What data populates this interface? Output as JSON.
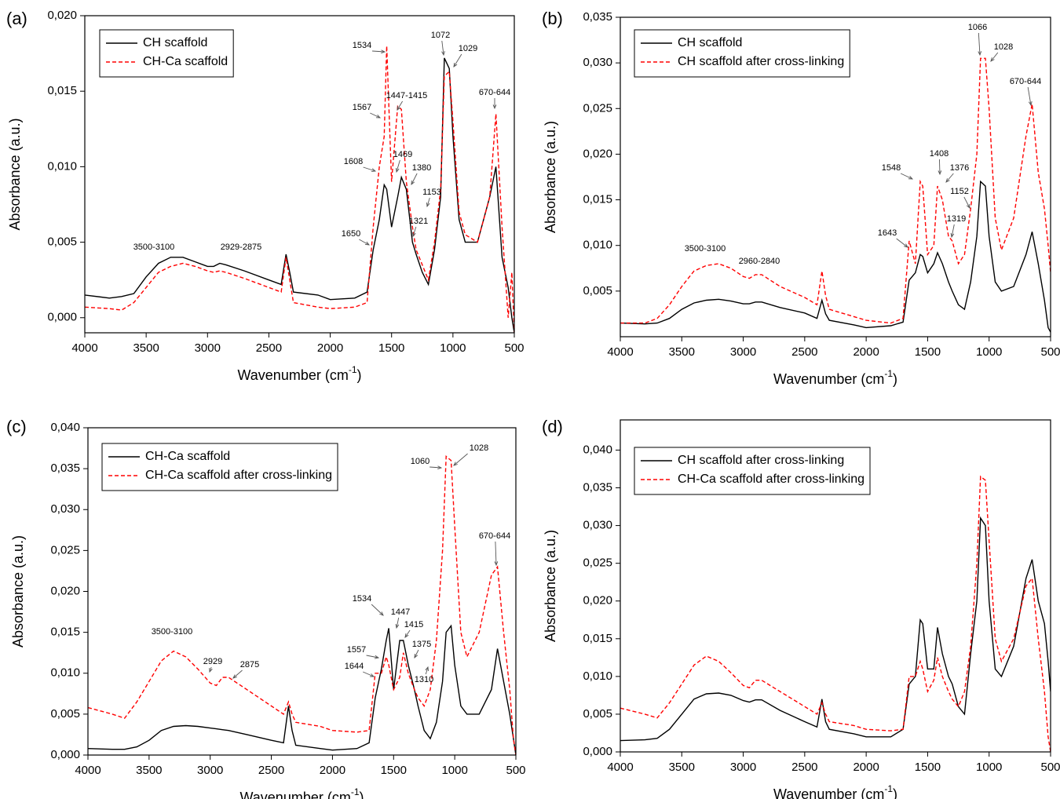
{
  "chart_data": [
    {
      "type": "line",
      "panel_label": "(a)",
      "ylabel": "Absorbance (a.u.)",
      "xlabel": {
        "text": "Wavenumber (cm",
        "superscript": "-1",
        "suffix": ")"
      },
      "legend": "upper left",
      "xlim": [
        4000,
        500
      ],
      "xticks": [
        4000,
        3500,
        3000,
        2500,
        2000,
        1500,
        1000,
        500
      ],
      "ylim": [
        -0.001,
        0.02
      ],
      "yticks": [
        {
          "value": 0,
          "label": "0,000"
        },
        {
          "value": 0.005,
          "label": "0,005"
        },
        {
          "value": 0.01,
          "label": "0,010"
        },
        {
          "value": 0.015,
          "label": "0,015"
        },
        {
          "value": 0.02,
          "label": "0,020"
        }
      ],
      "x": [
        4000,
        3800,
        3700,
        3600,
        3500,
        3400,
        3300,
        3200,
        3100,
        3000,
        2950,
        2900,
        2850,
        2700,
        2500,
        2400,
        2360,
        2330,
        2300,
        2100,
        2000,
        1800,
        1700,
        1650,
        1600,
        1560,
        1540,
        1500,
        1450,
        1420,
        1380,
        1330,
        1300,
        1250,
        1200,
        1150,
        1100,
        1070,
        1030,
        1000,
        950,
        900,
        800,
        700,
        650,
        600,
        550,
        520,
        500
      ],
      "series": [
        {
          "name": "CH scaffold",
          "color": "#000000",
          "style": "solid",
          "values": [
            0.0015,
            0.0013,
            0.0014,
            0.0016,
            0.0027,
            0.0036,
            0.004,
            0.004,
            0.0037,
            0.0034,
            0.0034,
            0.0036,
            0.0035,
            0.0031,
            0.0025,
            0.0022,
            0.0042,
            0.003,
            0.0017,
            0.0015,
            0.0012,
            0.0013,
            0.0017,
            0.0045,
            0.0065,
            0.0088,
            0.0085,
            0.006,
            0.008,
            0.0093,
            0.0085,
            0.005,
            0.0042,
            0.003,
            0.0022,
            0.0045,
            0.008,
            0.0172,
            0.0165,
            0.012,
            0.0065,
            0.005,
            0.005,
            0.008,
            0.01,
            0.004,
            0.002,
            0.0,
            -0.001
          ]
        },
        {
          "name": "CH-Ca scaffold",
          "color": "#ff0000",
          "style": "dashed",
          "values": [
            0.0007,
            0.0006,
            0.0005,
            0.001,
            0.002,
            0.003,
            0.0034,
            0.0036,
            0.0034,
            0.0031,
            0.003,
            0.0031,
            0.003,
            0.0026,
            0.002,
            0.0017,
            0.004,
            0.0025,
            0.001,
            0.0007,
            0.0006,
            0.0007,
            0.001,
            0.006,
            0.01,
            0.012,
            0.018,
            0.009,
            0.014,
            0.0138,
            0.009,
            0.006,
            0.0045,
            0.0035,
            0.0025,
            0.005,
            0.0085,
            0.016,
            0.0163,
            0.013,
            0.007,
            0.0055,
            0.005,
            0.008,
            0.0135,
            0.006,
            0.0,
            0.003,
            -0.001
          ]
        }
      ],
      "annotations": [
        "3500-3100",
        "2929-2875",
        "1650",
        "1608",
        "1567",
        "1534",
        "1447-1415",
        "1469",
        "1380",
        "1153",
        "1321",
        "1072",
        "1029",
        "670-644"
      ]
    },
    {
      "type": "line",
      "panel_label": "(b)",
      "ylabel": "Absorbance (a.u.)",
      "xlabel": {
        "text": "Wavenumber (cm",
        "superscript": "-1",
        "suffix": ")"
      },
      "legend": "upper left",
      "xlim": [
        4000,
        500
      ],
      "xticks": [
        4000,
        3500,
        3000,
        2500,
        2000,
        1500,
        1000,
        500
      ],
      "ylim": [
        0,
        0.035
      ],
      "yticks": [
        {
          "value": 0.005,
          "label": "0,005"
        },
        {
          "value": 0.01,
          "label": "0,010"
        },
        {
          "value": 0.015,
          "label": "0,015"
        },
        {
          "value": 0.02,
          "label": "0,020"
        },
        {
          "value": 0.025,
          "label": "0,025"
        },
        {
          "value": 0.03,
          "label": "0,030"
        },
        {
          "value": 0.035,
          "label": "0,035"
        }
      ],
      "x": [
        4000,
        3800,
        3700,
        3600,
        3500,
        3400,
        3300,
        3200,
        3100,
        3000,
        2950,
        2900,
        2850,
        2700,
        2500,
        2400,
        2360,
        2330,
        2300,
        2100,
        2000,
        1800,
        1700,
        1650,
        1600,
        1560,
        1540,
        1500,
        1450,
        1420,
        1380,
        1330,
        1300,
        1250,
        1200,
        1150,
        1100,
        1070,
        1030,
        1000,
        950,
        900,
        800,
        700,
        650,
        600,
        550,
        520,
        500
      ],
      "series": [
        {
          "name": "CH scaffold",
          "color": "#000000",
          "style": "solid",
          "values": [
            0.0015,
            0.0014,
            0.0015,
            0.002,
            0.003,
            0.0037,
            0.004,
            0.0041,
            0.0039,
            0.0036,
            0.0036,
            0.0038,
            0.0038,
            0.0032,
            0.0026,
            0.002,
            0.004,
            0.0025,
            0.0018,
            0.0013,
            0.001,
            0.0012,
            0.0016,
            0.0062,
            0.007,
            0.009,
            0.0088,
            0.007,
            0.008,
            0.0092,
            0.008,
            0.006,
            0.005,
            0.0035,
            0.003,
            0.006,
            0.011,
            0.017,
            0.0165,
            0.011,
            0.006,
            0.005,
            0.0055,
            0.009,
            0.0115,
            0.008,
            0.004,
            0.001,
            0.0005
          ]
        },
        {
          "name": "CH scaffold after cross-linking",
          "color": "#ff0000",
          "style": "dashed",
          "values": [
            0.0015,
            0.0015,
            0.002,
            0.0035,
            0.0055,
            0.0072,
            0.0078,
            0.008,
            0.0075,
            0.0066,
            0.0064,
            0.0068,
            0.0068,
            0.0055,
            0.0043,
            0.0035,
            0.0072,
            0.0045,
            0.003,
            0.0022,
            0.0018,
            0.0015,
            0.002,
            0.0105,
            0.008,
            0.017,
            0.0165,
            0.009,
            0.01,
            0.0165,
            0.015,
            0.011,
            0.0105,
            0.008,
            0.009,
            0.014,
            0.02,
            0.0305,
            0.0305,
            0.025,
            0.013,
            0.0095,
            0.013,
            0.022,
            0.0255,
            0.018,
            0.014,
            0.01,
            0.007
          ]
        }
      ],
      "annotations": [
        "3500-3100",
        "2960-2840",
        "1643",
        "1548",
        "1408",
        "1376",
        "1152",
        "1319",
        "1066",
        "1028",
        "670-644"
      ]
    },
    {
      "type": "line",
      "panel_label": "(c)",
      "ylabel": "Absorbance (a.u.)",
      "xlabel": {
        "text": "Wavenumber (cm",
        "superscript": "-1",
        "suffix": ")"
      },
      "legend": "upper left",
      "xlim": [
        4000,
        500
      ],
      "xticks": [
        4000,
        3500,
        3000,
        2500,
        2000,
        1500,
        1000,
        500
      ],
      "ylim": [
        0,
        0.04
      ],
      "yticks": [
        {
          "value": 0,
          "label": "0,000"
        },
        {
          "value": 0.005,
          "label": "0,005"
        },
        {
          "value": 0.01,
          "label": "0,010"
        },
        {
          "value": 0.015,
          "label": "0,015"
        },
        {
          "value": 0.02,
          "label": "0,020"
        },
        {
          "value": 0.025,
          "label": "0,025"
        },
        {
          "value": 0.03,
          "label": "0,030"
        },
        {
          "value": 0.035,
          "label": "0,035"
        },
        {
          "value": 0.04,
          "label": "0,040"
        }
      ],
      "x": [
        4000,
        3800,
        3700,
        3600,
        3500,
        3400,
        3300,
        3200,
        3100,
        3000,
        2950,
        2900,
        2850,
        2700,
        2500,
        2400,
        2360,
        2330,
        2300,
        2100,
        2000,
        1800,
        1700,
        1650,
        1600,
        1560,
        1540,
        1500,
        1450,
        1420,
        1380,
        1330,
        1300,
        1250,
        1200,
        1150,
        1100,
        1070,
        1030,
        1000,
        950,
        900,
        800,
        700,
        650,
        600,
        550,
        520,
        500
      ],
      "series": [
        {
          "name": "CH-Ca scaffold",
          "color": "#000000",
          "style": "solid",
          "values": [
            0.0008,
            0.0007,
            0.0007,
            0.001,
            0.0018,
            0.003,
            0.0035,
            0.0036,
            0.0035,
            0.0033,
            0.0032,
            0.0031,
            0.003,
            0.0025,
            0.0018,
            0.0015,
            0.006,
            0.003,
            0.0012,
            0.0008,
            0.0006,
            0.0008,
            0.0015,
            0.007,
            0.0105,
            0.014,
            0.0155,
            0.008,
            0.014,
            0.014,
            0.011,
            0.008,
            0.006,
            0.003,
            0.002,
            0.004,
            0.009,
            0.015,
            0.0158,
            0.011,
            0.006,
            0.005,
            0.005,
            0.008,
            0.013,
            0.009,
            0.005,
            0.002,
            0.0
          ]
        },
        {
          "name": "CH-Ca scaffold after cross-linking",
          "color": "#ff0000",
          "style": "dashed",
          "values": [
            0.0058,
            0.005,
            0.0045,
            0.0065,
            0.009,
            0.0115,
            0.0127,
            0.012,
            0.0105,
            0.0088,
            0.0085,
            0.0095,
            0.0095,
            0.008,
            0.006,
            0.005,
            0.0065,
            0.005,
            0.004,
            0.0035,
            0.003,
            0.0028,
            0.003,
            0.01,
            0.01,
            0.012,
            0.011,
            0.008,
            0.0095,
            0.0125,
            0.01,
            0.008,
            0.007,
            0.006,
            0.008,
            0.014,
            0.025,
            0.0365,
            0.036,
            0.028,
            0.015,
            0.012,
            0.015,
            0.022,
            0.023,
            0.015,
            0.008,
            0.002,
            0.0
          ]
        }
      ],
      "annotations": [
        "3500-3100",
        "2929",
        "2875",
        "1557",
        "1644",
        "1534",
        "1447",
        "1415",
        "1375",
        "1310",
        "1060",
        "1028",
        "670-644"
      ]
    },
    {
      "type": "line",
      "panel_label": "(d)",
      "ylabel": "Absorbance (a.u.)",
      "xlabel": {
        "text": "Wavenumber (cm",
        "superscript": "-1",
        "suffix": ")"
      },
      "legend": "upper left",
      "xlim": [
        4000,
        500
      ],
      "xticks": [
        4000,
        3500,
        3000,
        2500,
        2000,
        1500,
        1000,
        500
      ],
      "ylim": [
        0,
        0.044
      ],
      "yticks": [
        {
          "value": 0,
          "label": "0,000"
        },
        {
          "value": 0.005,
          "label": "0,005"
        },
        {
          "value": 0.01,
          "label": "0,010"
        },
        {
          "value": 0.015,
          "label": "0,015"
        },
        {
          "value": 0.02,
          "label": "0,020"
        },
        {
          "value": 0.025,
          "label": "0,025"
        },
        {
          "value": 0.03,
          "label": "0,030"
        },
        {
          "value": 0.035,
          "label": "0,035"
        },
        {
          "value": 0.04,
          "label": "0,040"
        }
      ],
      "x": [
        4000,
        3800,
        3700,
        3600,
        3500,
        3400,
        3300,
        3200,
        3100,
        3000,
        2950,
        2900,
        2850,
        2700,
        2500,
        2400,
        2360,
        2330,
        2300,
        2100,
        2000,
        1800,
        1700,
        1650,
        1600,
        1560,
        1540,
        1500,
        1450,
        1420,
        1380,
        1330,
        1300,
        1250,
        1200,
        1150,
        1100,
        1070,
        1030,
        1000,
        950,
        900,
        800,
        700,
        650,
        600,
        550,
        520,
        500
      ],
      "series": [
        {
          "name": "CH scaffold after cross-linking",
          "color": "#000000",
          "style": "solid",
          "values": [
            0.0015,
            0.0016,
            0.0018,
            0.003,
            0.005,
            0.007,
            0.0077,
            0.0078,
            0.0075,
            0.0068,
            0.0066,
            0.0069,
            0.0069,
            0.0055,
            0.004,
            0.0033,
            0.007,
            0.004,
            0.003,
            0.0024,
            0.002,
            0.002,
            0.003,
            0.009,
            0.01,
            0.0175,
            0.017,
            0.011,
            0.011,
            0.0165,
            0.013,
            0.01,
            0.009,
            0.006,
            0.005,
            0.013,
            0.02,
            0.031,
            0.03,
            0.02,
            0.011,
            0.01,
            0.014,
            0.023,
            0.0255,
            0.02,
            0.017,
            0.012,
            0.008
          ]
        },
        {
          "name": "CH-Ca scaffold after cross-linking",
          "color": "#ff0000",
          "style": "dashed",
          "values": [
            0.0058,
            0.005,
            0.0045,
            0.0065,
            0.009,
            0.0115,
            0.0127,
            0.012,
            0.0105,
            0.0088,
            0.0085,
            0.0095,
            0.0095,
            0.008,
            0.006,
            0.005,
            0.0065,
            0.005,
            0.004,
            0.0035,
            0.003,
            0.0028,
            0.003,
            0.01,
            0.01,
            0.012,
            0.011,
            0.008,
            0.0095,
            0.0125,
            0.01,
            0.008,
            0.007,
            0.006,
            0.008,
            0.014,
            0.025,
            0.0365,
            0.036,
            0.028,
            0.015,
            0.012,
            0.015,
            0.022,
            0.023,
            0.015,
            0.008,
            0.002,
            0.0
          ]
        }
      ],
      "annotations": []
    }
  ]
}
